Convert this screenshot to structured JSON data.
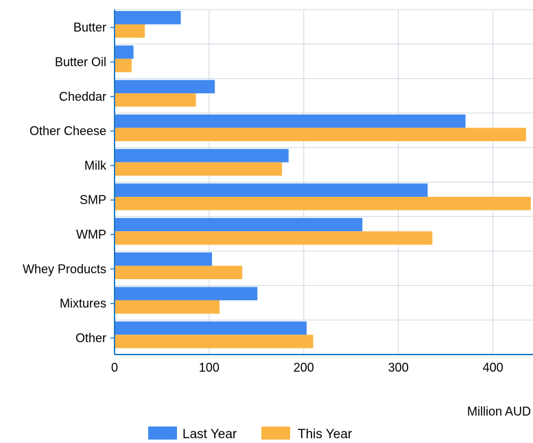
{
  "chart_data": {
    "type": "bar",
    "orientation": "horizontal",
    "title": "",
    "xlabel": "Million AUD",
    "ylabel": "",
    "xlim": [
      0,
      440
    ],
    "xticks": [
      0,
      100,
      200,
      300,
      400
    ],
    "grid": true,
    "legend_position": "bottom",
    "categories": [
      "Butter",
      "Butter Oil",
      "Cheddar",
      "Other Cheese",
      "Milk",
      "SMP",
      "WMP",
      "Whey Products",
      "Mixtures",
      "Other"
    ],
    "series": [
      {
        "name": "Last Year",
        "color": "#4189f0",
        "values": [
          70,
          20,
          106,
          371,
          184,
          331,
          262,
          103,
          151,
          203
        ]
      },
      {
        "name": "This Year",
        "color": "#fbb444",
        "values": [
          32,
          18,
          86,
          435,
          177,
          440,
          336,
          135,
          111,
          210
        ]
      }
    ]
  }
}
